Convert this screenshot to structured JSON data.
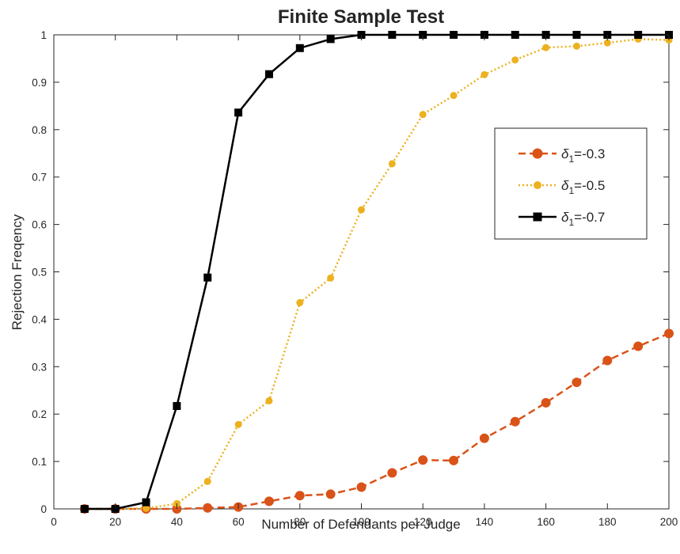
{
  "chart_data": {
    "type": "line",
    "title": "Finite Sample Test",
    "xlabel": "Number of Defendants per Judge",
    "ylabel": "Rejection Freqency",
    "xlim": [
      0,
      200
    ],
    "ylim": [
      0,
      1
    ],
    "xticks": [
      0,
      20,
      40,
      60,
      80,
      100,
      120,
      140,
      160,
      180,
      200
    ],
    "yticks": [
      0,
      0.1,
      0.2,
      0.3,
      0.4,
      0.5,
      0.6,
      0.7,
      0.8,
      0.9,
      1
    ],
    "grid": false,
    "legend_position": "right",
    "x": [
      10,
      20,
      30,
      40,
      50,
      60,
      70,
      80,
      90,
      100,
      110,
      120,
      130,
      140,
      150,
      160,
      170,
      180,
      190,
      200
    ],
    "series": [
      {
        "name": "δ",
        "name_subscript": "1",
        "name_suffix": "=-0.3",
        "color": "#D95319",
        "line_style": "dashed",
        "marker": "circle",
        "values": [
          0,
          0,
          0,
          0,
          0.002,
          0.004,
          0.016,
          0.028,
          0.031,
          0.046,
          0.076,
          0.103,
          0.102,
          0.149,
          0.184,
          0.224,
          0.267,
          0.313,
          0.343,
          0.37
        ]
      },
      {
        "name": "δ",
        "name_subscript": "1",
        "name_suffix": "=-0.5",
        "color": "#EDB120",
        "line_style": "dotted",
        "marker": "dot",
        "values": [
          0,
          0,
          0.001,
          0.011,
          0.058,
          0.178,
          0.228,
          0.435,
          0.487,
          0.631,
          0.728,
          0.832,
          0.872,
          0.916,
          0.947,
          0.973,
          0.976,
          0.983,
          0.991,
          0.989
        ]
      },
      {
        "name": "δ",
        "name_subscript": "1",
        "name_suffix": "=-0.7",
        "color": "#000000",
        "line_style": "solid",
        "marker": "square",
        "values": [
          0,
          0,
          0.014,
          0.217,
          0.488,
          0.836,
          0.917,
          0.972,
          0.991,
          1,
          1,
          1,
          1,
          1,
          1,
          1,
          1,
          1,
          1,
          1
        ]
      }
    ]
  }
}
